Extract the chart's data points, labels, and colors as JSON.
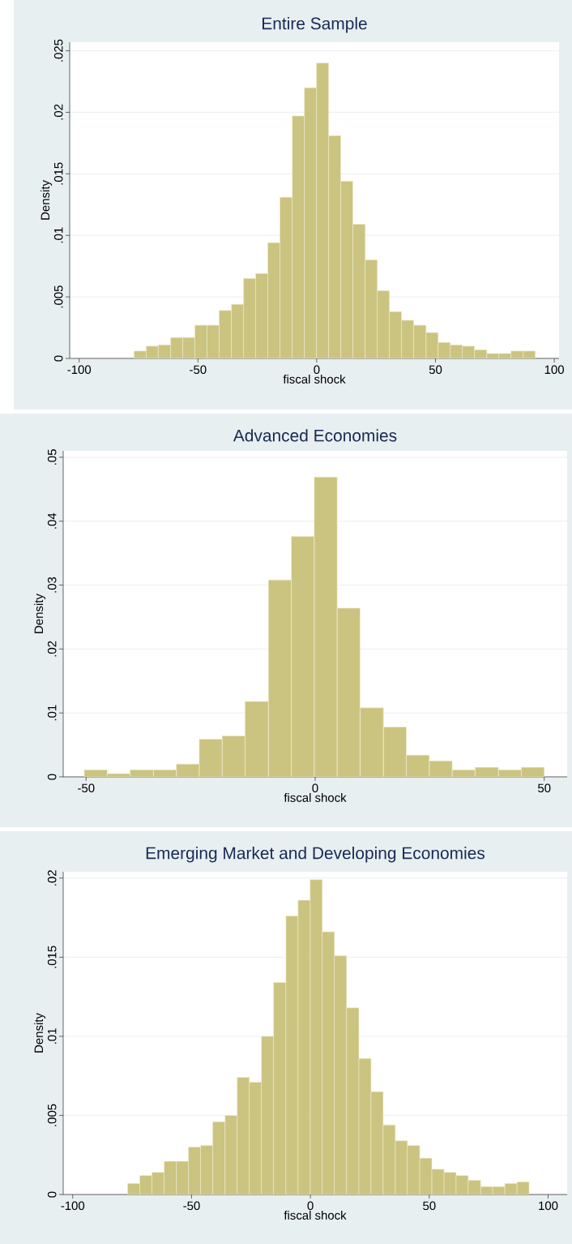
{
  "chart_data": [
    {
      "type": "histogram",
      "title": "Entire Sample",
      "xlabel": "fiscal shock",
      "ylabel": "Density",
      "color": "#cbc380",
      "grid": "y",
      "bins": [
        -76.9,
        -71.8,
        -66.7,
        -61.5,
        -56.4,
        -51.3,
        -46.2,
        -41.1,
        -35.9,
        -30.8,
        -25.7,
        -20.6,
        -15.5,
        -10.3,
        -5.2,
        -0.1,
        5.0,
        10.1,
        15.2,
        20.4,
        25.5,
        30.6,
        35.7,
        40.8,
        46.0,
        51.1,
        56.2,
        61.3,
        66.4,
        71.6,
        76.7,
        81.8,
        86.9,
        92.0
      ],
      "values": [
        0.0006,
        0.001,
        0.0011,
        0.0017,
        0.0017,
        0.0027,
        0.0027,
        0.0039,
        0.0044,
        0.0065,
        0.0069,
        0.0094,
        0.0131,
        0.0197,
        0.022,
        0.024,
        0.0181,
        0.0144,
        0.0109,
        0.008,
        0.0055,
        0.0038,
        0.0031,
        0.0027,
        0.0021,
        0.0013,
        0.0011,
        0.001,
        0.0007,
        0.0004,
        0.0004,
        0.0006,
        0.0006
      ],
      "xlim": [
        -104,
        102
      ],
      "ylim": [
        0,
        0.0257
      ],
      "xticks": [
        -100,
        -50,
        0,
        50,
        100
      ],
      "yticks": [
        0,
        {
          "value": 0.005,
          "label": ".005"
        },
        {
          "value": 0.01,
          "label": ".01"
        },
        {
          "value": 0.015,
          "label": ".015"
        },
        {
          "value": 0.02,
          "label": ".02"
        },
        {
          "value": 0.025,
          "label": ".025"
        }
      ]
    },
    {
      "type": "histogram",
      "title": "Advanced Economies",
      "xlabel": "fiscal shock",
      "ylabel": "Density",
      "color": "#cbc380",
      "grid": "y",
      "bins": [
        -50.4,
        -45.4,
        -40.4,
        -35.3,
        -30.3,
        -25.3,
        -20.3,
        -15.3,
        -10.2,
        -5.2,
        -0.2,
        4.8,
        9.8,
        14.9,
        19.9,
        24.9,
        29.9,
        34.9,
        40.0,
        45.0,
        50.0
      ],
      "values": [
        0.0011,
        0.0005,
        0.0011,
        0.0011,
        0.002,
        0.0059,
        0.0064,
        0.0118,
        0.0308,
        0.0376,
        0.0469,
        0.0264,
        0.0108,
        0.0078,
        0.0034,
        0.0025,
        0.0011,
        0.0015,
        0.0011,
        0.0015
      ],
      "xlim": [
        -55,
        55
      ],
      "ylim": [
        0,
        0.051
      ],
      "xticks": [
        -50,
        0,
        50
      ],
      "yticks": [
        0,
        {
          "value": 0.01,
          "label": ".01"
        },
        {
          "value": 0.02,
          "label": ".02"
        },
        {
          "value": 0.03,
          "label": ".03"
        },
        {
          "value": 0.04,
          "label": ".04"
        },
        {
          "value": 0.05,
          "label": ".05"
        }
      ]
    },
    {
      "type": "histogram",
      "title": "Emerging Market and Developing Economies",
      "xlabel": "fiscal shock",
      "ylabel": "Density",
      "color": "#cbc380",
      "grid": "y",
      "bins": [
        -76.9,
        -71.8,
        -66.7,
        -61.5,
        -56.4,
        -51.3,
        -46.2,
        -41.1,
        -35.9,
        -30.8,
        -25.7,
        -20.6,
        -15.5,
        -10.3,
        -5.2,
        -0.1,
        5.0,
        10.1,
        15.2,
        20.4,
        25.5,
        30.6,
        35.7,
        40.8,
        46.0,
        51.1,
        56.2,
        61.3,
        66.4,
        71.6,
        76.7,
        81.8,
        86.9,
        92.0
      ],
      "values": [
        0.0007,
        0.0012,
        0.0014,
        0.0021,
        0.0021,
        0.003,
        0.0031,
        0.0046,
        0.005,
        0.0074,
        0.0071,
        0.01,
        0.0134,
        0.0176,
        0.0186,
        0.0199,
        0.0166,
        0.0151,
        0.0118,
        0.0086,
        0.0065,
        0.0044,
        0.0034,
        0.0031,
        0.0023,
        0.0016,
        0.0014,
        0.0012,
        0.0009,
        0.0005,
        0.0005,
        0.0007,
        0.0008
      ],
      "xlim": [
        -104,
        108
      ],
      "ylim": [
        0,
        0.0204
      ],
      "xticks": [
        -100,
        -50,
        0,
        50,
        100
      ],
      "yticks": [
        0,
        {
          "value": 0.005,
          "label": ".005"
        },
        {
          "value": 0.01,
          "label": ".01"
        },
        {
          "value": 0.015,
          "label": ".015"
        },
        {
          "value": 0.02,
          "label": ".02"
        }
      ]
    }
  ]
}
